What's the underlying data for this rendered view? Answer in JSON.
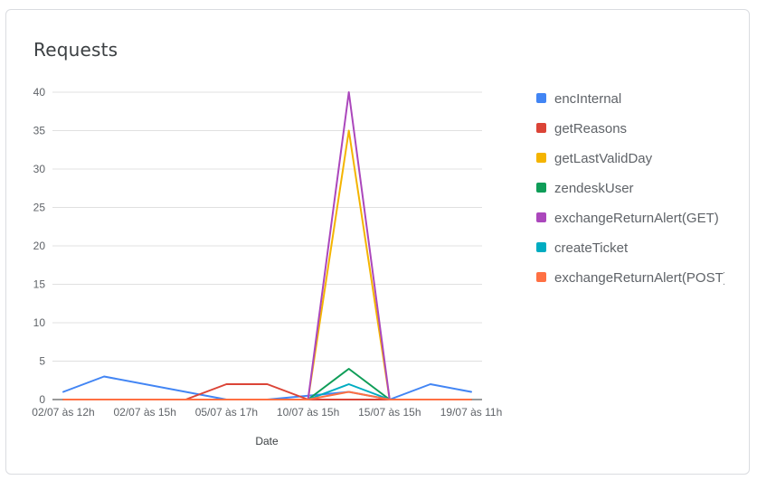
{
  "card": {
    "title": "Requests"
  },
  "chart_data": {
    "type": "line",
    "title": "Requests",
    "xlabel": "Date",
    "ylabel": "",
    "ylim": [
      0,
      40
    ],
    "yticks": [
      0,
      5,
      10,
      15,
      20,
      25,
      30,
      35,
      40
    ],
    "x_tick_labels": [
      "02/07 às 12h",
      "02/07 às 15h",
      "05/07 às 17h",
      "10/07 às 15h",
      "15/07 às 15h",
      "19/07 às 11h"
    ],
    "point_count": 11,
    "grid": true,
    "legend_position": "right",
    "series": [
      {
        "name": "encInternal",
        "color": "#4285f4",
        "x": [
          0,
          1,
          4,
          5,
          7,
          8,
          9,
          10
        ],
        "values": [
          1,
          3,
          0,
          0,
          1,
          0,
          2,
          1
        ]
      },
      {
        "name": "getReasons",
        "color": "#db4437",
        "x": [
          0,
          3,
          4,
          5,
          6,
          10
        ],
        "values": [
          0,
          0,
          2,
          2,
          0,
          0
        ]
      },
      {
        "name": "getLastValidDay",
        "color": "#f4b400",
        "x": [
          0,
          6,
          7,
          8,
          10
        ],
        "values": [
          0,
          0,
          35,
          0,
          0
        ]
      },
      {
        "name": "zendeskUser",
        "color": "#0f9d58",
        "x": [
          0,
          6,
          7,
          8,
          10
        ],
        "values": [
          0,
          0,
          4,
          0,
          0
        ]
      },
      {
        "name": "exchangeReturnAlert(GET)",
        "color": "#ab47bc",
        "x": [
          0,
          6,
          7,
          8,
          10
        ],
        "values": [
          0,
          0,
          40,
          0,
          0
        ]
      },
      {
        "name": "createTicket",
        "color": "#00acc1",
        "x": [
          0,
          6,
          7,
          8,
          10
        ],
        "values": [
          0,
          0,
          2,
          0,
          0
        ]
      },
      {
        "name": "exchangeReturnAlert(POST)",
        "color": "#ff7043",
        "x": [
          0,
          6,
          7,
          8,
          10
        ],
        "values": [
          0,
          0,
          1,
          0,
          0
        ]
      }
    ]
  }
}
